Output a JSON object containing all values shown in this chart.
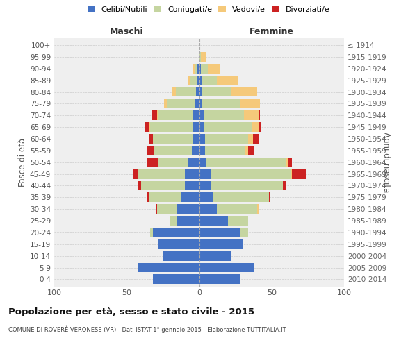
{
  "age_groups": [
    "0-4",
    "5-9",
    "10-14",
    "15-19",
    "20-24",
    "25-29",
    "30-34",
    "35-39",
    "40-44",
    "45-49",
    "50-54",
    "55-59",
    "60-64",
    "65-69",
    "70-74",
    "75-79",
    "80-84",
    "85-89",
    "90-94",
    "95-99",
    "100+"
  ],
  "birth_years": [
    "2010-2014",
    "2005-2009",
    "2000-2004",
    "1995-1999",
    "1990-1994",
    "1985-1989",
    "1980-1984",
    "1975-1979",
    "1970-1974",
    "1965-1969",
    "1960-1964",
    "1955-1959",
    "1950-1954",
    "1945-1949",
    "1940-1944",
    "1935-1939",
    "1930-1934",
    "1925-1929",
    "1920-1924",
    "1915-1919",
    "≤ 1914"
  ],
  "male_celibe": [
    32,
    42,
    25,
    28,
    32,
    15,
    15,
    12,
    10,
    10,
    8,
    5,
    4,
    4,
    4,
    3,
    2,
    1,
    1,
    0,
    0
  ],
  "male_coniugato": [
    0,
    0,
    0,
    0,
    2,
    5,
    14,
    23,
    30,
    32,
    20,
    26,
    28,
    30,
    24,
    19,
    14,
    5,
    2,
    0,
    0
  ],
  "male_vedovo": [
    0,
    0,
    0,
    0,
    0,
    0,
    0,
    0,
    0,
    0,
    0,
    0,
    0,
    1,
    1,
    2,
    3,
    2,
    1,
    0,
    0
  ],
  "male_divorziato": [
    0,
    0,
    0,
    0,
    0,
    0,
    1,
    1,
    2,
    4,
    8,
    5,
    3,
    2,
    4,
    0,
    0,
    0,
    0,
    0,
    0
  ],
  "female_celibe": [
    28,
    38,
    22,
    30,
    28,
    20,
    12,
    10,
    8,
    8,
    5,
    4,
    4,
    3,
    3,
    2,
    2,
    2,
    1,
    0,
    0
  ],
  "female_coniugato": [
    0,
    0,
    0,
    0,
    6,
    14,
    28,
    38,
    50,
    55,
    55,
    28,
    30,
    33,
    28,
    26,
    20,
    10,
    5,
    1,
    0
  ],
  "female_vedovo": [
    0,
    0,
    0,
    0,
    0,
    0,
    1,
    0,
    0,
    1,
    1,
    2,
    3,
    5,
    10,
    14,
    18,
    15,
    8,
    4,
    0
  ],
  "female_divorziato": [
    0,
    0,
    0,
    0,
    0,
    0,
    0,
    1,
    2,
    10,
    3,
    4,
    4,
    2,
    1,
    0,
    0,
    0,
    0,
    0,
    0
  ],
  "colors": {
    "celibe": "#4472C4",
    "coniugato": "#C5D5A0",
    "vedovo": "#F5C97A",
    "divorziato": "#CC2222"
  },
  "title": "Popolazione per età, sesso e stato civile - 2015",
  "subtitle": "COMUNE DI ROVERÈ VERONESE (VR) - Dati ISTAT 1° gennaio 2015 - Elaborazione TUTTITALIA.IT",
  "xlabel_left": "Maschi",
  "xlabel_right": "Femmine",
  "ylabel_left": "Fasce di età",
  "ylabel_right": "Anni di nascita",
  "xlim": 100,
  "legend_labels": [
    "Celibi/Nubili",
    "Coniugati/e",
    "Vedovi/e",
    "Divorziati/e"
  ],
  "background_color": "#efefef"
}
